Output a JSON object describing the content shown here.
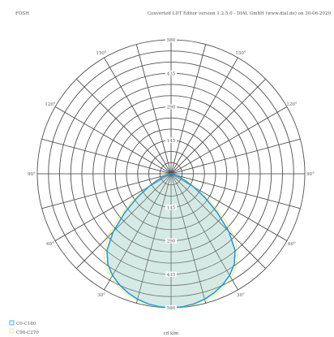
{
  "header": {
    "left_label": "FOSH",
    "right_label": "Converted LDT Editor version 1.2.5.0 - DIAL GmbH (www.dial.de) on 30-06-2020"
  },
  "chart_data": {
    "type": "polar",
    "unit": "cd klm",
    "radial_ticks": [
      145,
      290,
      435,
      580
    ],
    "radial_max": 580,
    "angle_labels": [
      {
        "text": "30°",
        "angle": 30
      },
      {
        "text": "60°",
        "angle": 60
      },
      {
        "text": "90°",
        "angle": 90
      },
      {
        "text": "120°",
        "angle": 120
      },
      {
        "text": "150°",
        "angle": 150
      },
      {
        "text": "30°",
        "angle": -30
      },
      {
        "text": "60°",
        "angle": -60
      },
      {
        "text": "90°",
        "angle": -90
      },
      {
        "text": "120°",
        "angle": -120
      },
      {
        "text": "150°",
        "angle": -150
      }
    ],
    "series": [
      {
        "name": "C0-C180",
        "color": "#1a9cdf",
        "fill": "#cfe6e0",
        "points": [
          [
            0,
            580
          ],
          [
            5,
            578
          ],
          [
            10,
            572
          ],
          [
            15,
            562
          ],
          [
            20,
            548
          ],
          [
            25,
            530
          ],
          [
            30,
            508
          ],
          [
            35,
            478
          ],
          [
            40,
            432
          ],
          [
            45,
            355
          ],
          [
            50,
            262
          ],
          [
            55,
            180
          ],
          [
            60,
            112
          ],
          [
            65,
            65
          ],
          [
            70,
            34
          ],
          [
            75,
            16
          ],
          [
            80,
            7
          ],
          [
            85,
            3
          ],
          [
            90,
            0
          ]
        ]
      },
      {
        "name": "C90-C270",
        "color": "#f3f0a6",
        "fill": "none",
        "points": [
          [
            0,
            580
          ],
          [
            5,
            579
          ],
          [
            10,
            576
          ],
          [
            15,
            568
          ],
          [
            20,
            556
          ],
          [
            25,
            540
          ],
          [
            30,
            520
          ],
          [
            35,
            492
          ],
          [
            40,
            452
          ],
          [
            45,
            388
          ],
          [
            50,
            300
          ],
          [
            55,
            205
          ],
          [
            60,
            126
          ],
          [
            65,
            70
          ],
          [
            70,
            36
          ],
          [
            75,
            17
          ],
          [
            80,
            7
          ],
          [
            85,
            3
          ],
          [
            90,
            0
          ]
        ]
      }
    ]
  }
}
